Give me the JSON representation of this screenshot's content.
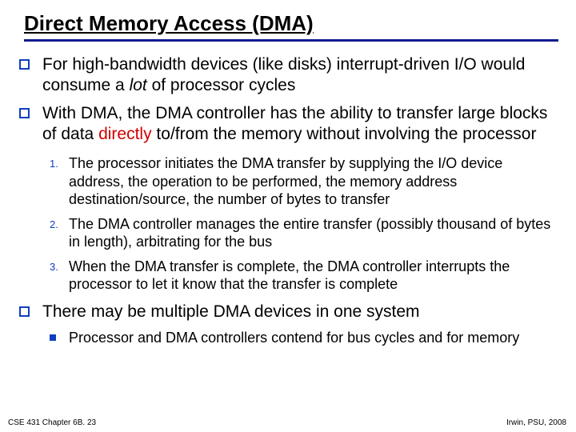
{
  "title": "Direct Memory Access (DMA)",
  "colors": {
    "accent": "#0e1a8f",
    "bullet_border": "#0e3fbf",
    "highlight": "#d10000",
    "text": "#000000",
    "background": "#ffffff"
  },
  "typography": {
    "title_fontsize": 26,
    "body_fontsize": 21,
    "sub_fontsize": 18,
    "footer_fontsize": 10
  },
  "bullets": [
    {
      "prefix": "For high-bandwidth devices (like disks) interrupt-driven I/O would consume a ",
      "italic": "lot",
      "suffix": " of processor cycles"
    },
    {
      "prefix": "With DMA, the DMA controller has the ability to transfer large blocks of data ",
      "highlight": "directly",
      "suffix": " to/from the memory without involving the processor"
    }
  ],
  "numbered": [
    {
      "n": "1.",
      "text": "The processor initiates the DMA transfer by supplying the I/O device address, the operation to be performed, the memory address destination/source, the number of bytes to transfer"
    },
    {
      "n": "2.",
      "text": "The DMA controller manages the entire transfer (possibly thousand of bytes in length), arbitrating for the bus"
    },
    {
      "n": "3.",
      "text": "When the DMA transfer is complete, the DMA controller interrupts the processor to let it know that the transfer is complete"
    }
  ],
  "bullets2": [
    {
      "text": "There may be multiple DMA devices in one system"
    }
  ],
  "dots": [
    {
      "text": "Processor and DMA controllers contend for bus cycles and for memory"
    }
  ],
  "footer": {
    "left": "CSE 431  Chapter 6B. 23",
    "right": "Irwin, PSU, 2008"
  }
}
